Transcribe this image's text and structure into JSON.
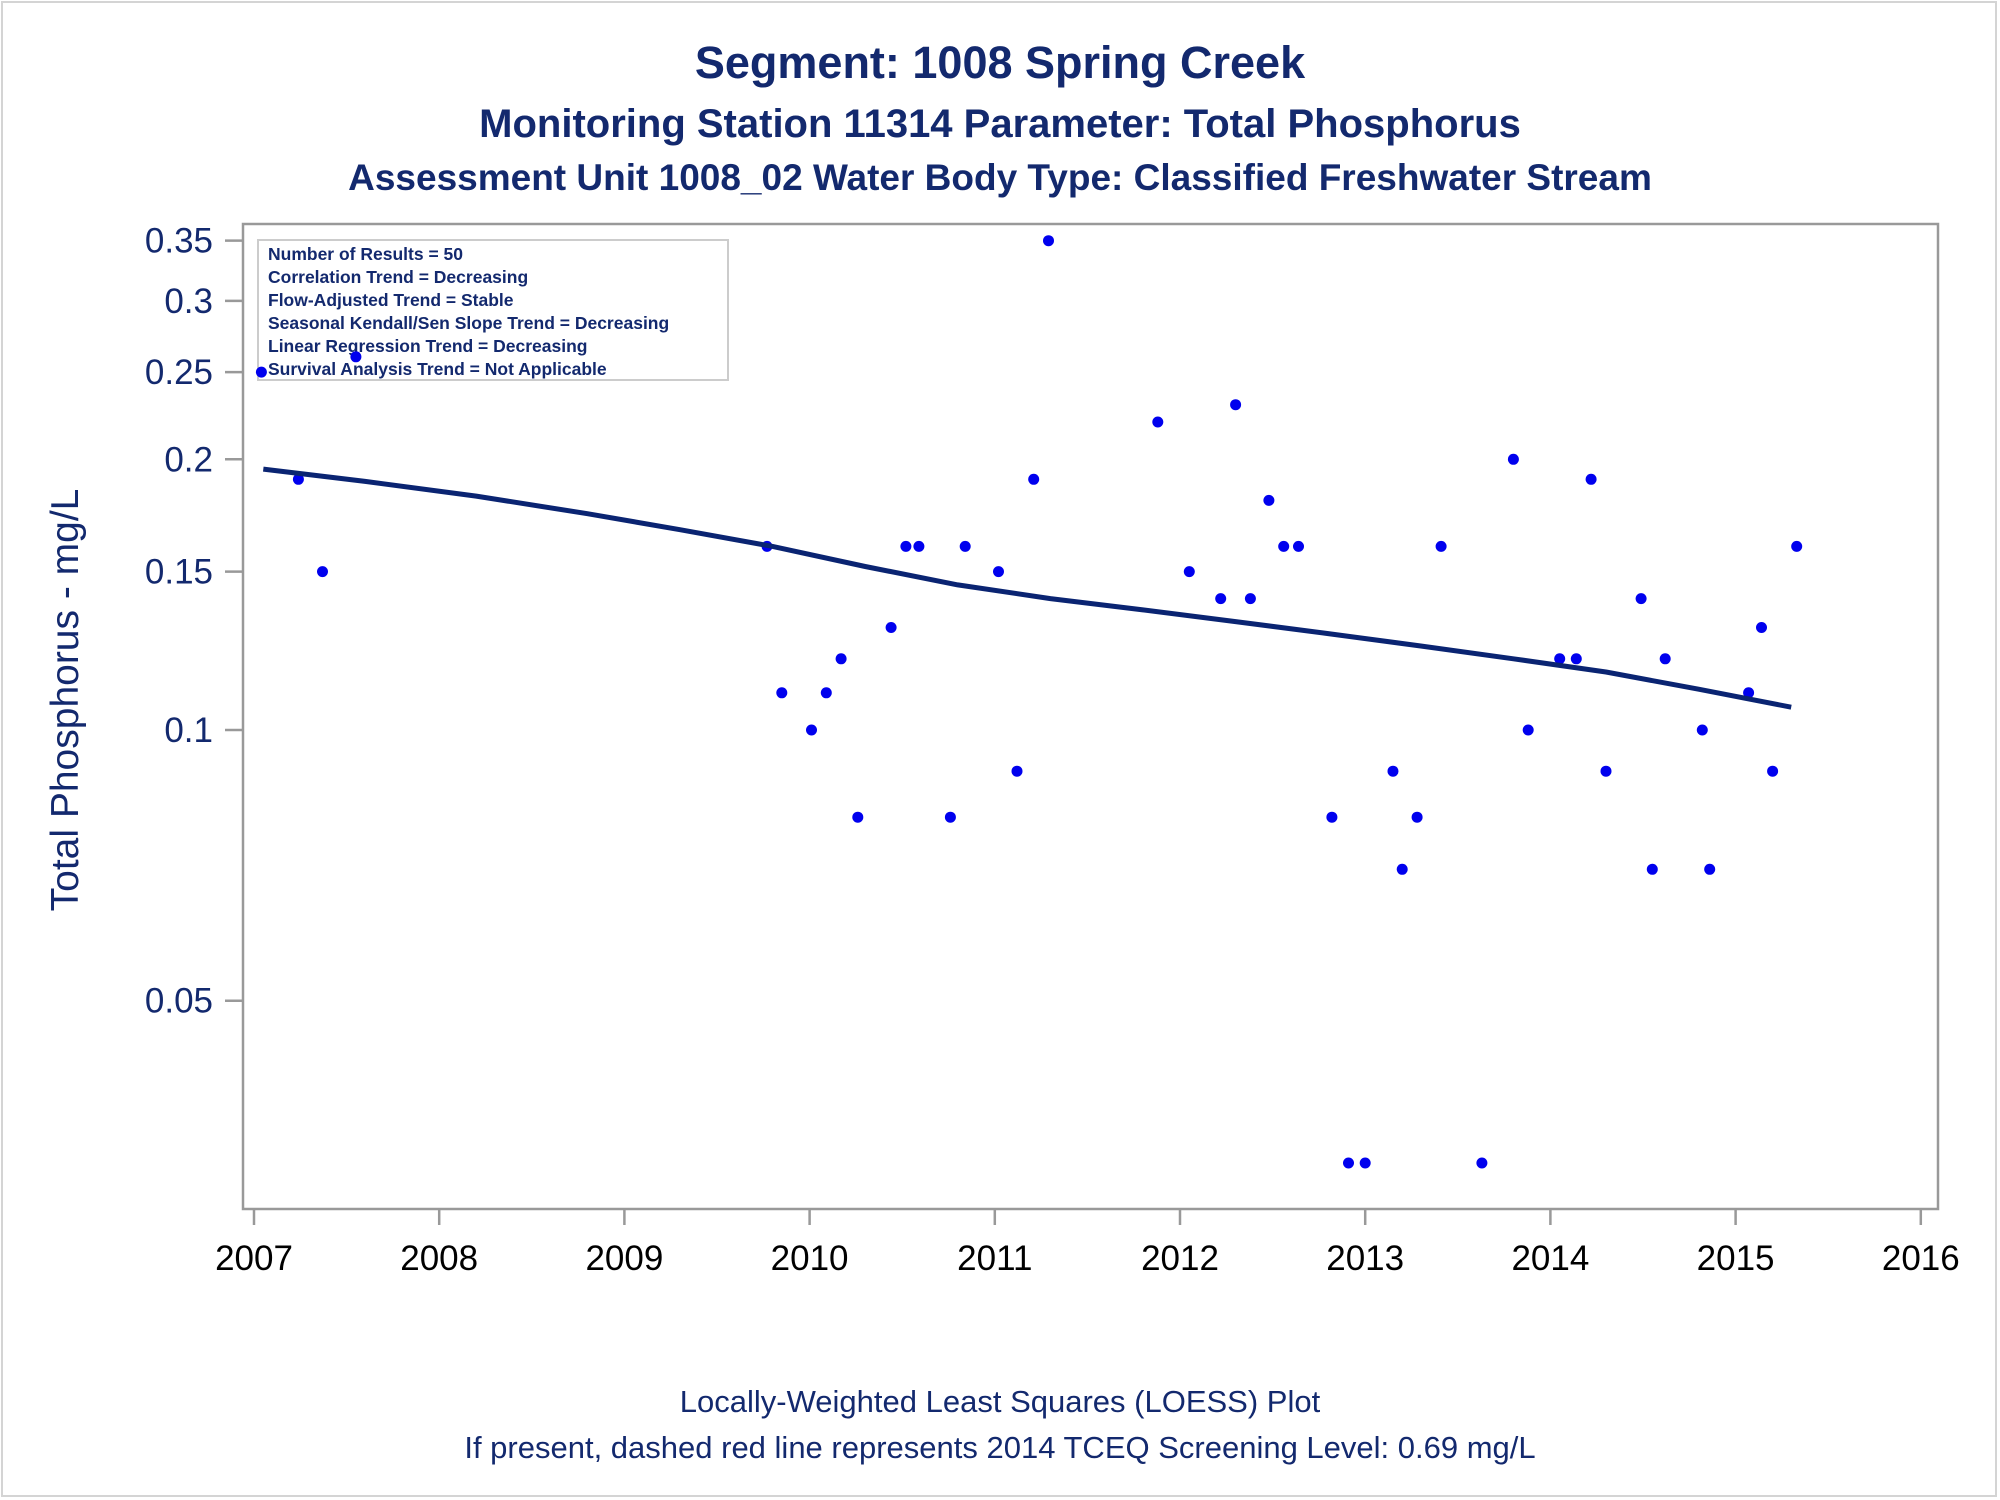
{
  "colors": {
    "text": "#13296e",
    "point": "#0000ee",
    "trend_line": "#0a2472",
    "axis": "#999999"
  },
  "chart_data": {
    "type": "scatter",
    "title": "Segment: 1008  Spring Creek",
    "subtitle": "Monitoring Station 11314 Parameter: Total Phosphorus",
    "subtitle2": "Assessment Unit 1008_02   Water Body Type: Classified Freshwater Stream",
    "ylabel": "Total Phosphorus - mg/L",
    "xlabel": "",
    "yscale": "log",
    "ylim": [
      0.03,
      0.35
    ],
    "xlim": [
      2006.93,
      2016.1
    ],
    "y_ticks": [
      {
        "value": 0.05,
        "label": "0.05"
      },
      {
        "value": 0.1,
        "label": "0.1"
      },
      {
        "value": 0.15,
        "label": "0.15"
      },
      {
        "value": 0.2,
        "label": "0.2"
      },
      {
        "value": 0.25,
        "label": "0.25"
      },
      {
        "value": 0.3,
        "label": "0.3"
      },
      {
        "value": 0.35,
        "label": "0.35"
      }
    ],
    "x_ticks": [
      {
        "value": 2007,
        "label": "2007"
      },
      {
        "value": 2008,
        "label": "2008"
      },
      {
        "value": 2009,
        "label": "2009"
      },
      {
        "value": 2010,
        "label": "2010"
      },
      {
        "value": 2011,
        "label": "2011"
      },
      {
        "value": 2012,
        "label": "2012"
      },
      {
        "value": 2013,
        "label": "2013"
      },
      {
        "value": 2014,
        "label": "2014"
      },
      {
        "value": 2015,
        "label": "2015"
      },
      {
        "value": 2016,
        "label": "2016"
      }
    ],
    "grid": false,
    "legend_box": {
      "placement": "top-left",
      "lines": [
        "Number of Results = 50",
        "Correlation Trend = Decreasing",
        "Flow-Adjusted Trend = Stable",
        "Seasonal Kendall/Sen Slope Trend = Decreasing",
        "Linear Regression Trend = Decreasing",
        "Survival Analysis Trend = Not Applicable"
      ]
    },
    "points": [
      [
        2007.04,
        0.25
      ],
      [
        2007.24,
        0.19
      ],
      [
        2007.37,
        0.15
      ],
      [
        2007.55,
        0.26
      ],
      [
        2009.77,
        0.16
      ],
      [
        2009.85,
        0.11
      ],
      [
        2010.01,
        0.1
      ],
      [
        2010.09,
        0.11
      ],
      [
        2010.17,
        0.12
      ],
      [
        2010.26,
        0.08
      ],
      [
        2010.44,
        0.13
      ],
      [
        2010.52,
        0.16
      ],
      [
        2010.59,
        0.16
      ],
      [
        2010.76,
        0.08
      ],
      [
        2010.84,
        0.16
      ],
      [
        2011.02,
        0.15
      ],
      [
        2011.12,
        0.09
      ],
      [
        2011.21,
        0.19
      ],
      [
        2011.29,
        0.35
      ],
      [
        2011.88,
        0.22
      ],
      [
        2012.05,
        0.15
      ],
      [
        2012.22,
        0.14
      ],
      [
        2012.3,
        0.23
      ],
      [
        2012.38,
        0.14
      ],
      [
        2012.48,
        0.18
      ],
      [
        2012.56,
        0.16
      ],
      [
        2012.64,
        0.16
      ],
      [
        2012.82,
        0.08
      ],
      [
        2012.91,
        0.033
      ],
      [
        2013.0,
        0.033
      ],
      [
        2013.15,
        0.09
      ],
      [
        2013.2,
        0.07
      ],
      [
        2013.28,
        0.08
      ],
      [
        2013.41,
        0.16
      ],
      [
        2013.63,
        0.033
      ],
      [
        2013.8,
        0.2
      ],
      [
        2013.88,
        0.1
      ],
      [
        2014.05,
        0.12
      ],
      [
        2014.14,
        0.12
      ],
      [
        2014.22,
        0.19
      ],
      [
        2014.3,
        0.09
      ],
      [
        2014.49,
        0.14
      ],
      [
        2014.55,
        0.07
      ],
      [
        2014.62,
        0.12
      ],
      [
        2014.82,
        0.1
      ],
      [
        2014.86,
        0.07
      ],
      [
        2015.07,
        0.11
      ],
      [
        2015.14,
        0.13
      ],
      [
        2015.2,
        0.09
      ],
      [
        2015.33,
        0.16
      ]
    ],
    "trend_line": [
      [
        2007.05,
        0.195
      ],
      [
        2007.6,
        0.189
      ],
      [
        2008.2,
        0.182
      ],
      [
        2008.8,
        0.174
      ],
      [
        2009.3,
        0.167
      ],
      [
        2009.8,
        0.16
      ],
      [
        2010.3,
        0.152
      ],
      [
        2010.8,
        0.145
      ],
      [
        2011.3,
        0.14
      ],
      [
        2011.8,
        0.136
      ],
      [
        2012.3,
        0.132
      ],
      [
        2012.8,
        0.128
      ],
      [
        2013.3,
        0.124
      ],
      [
        2013.8,
        0.12
      ],
      [
        2014.3,
        0.116
      ],
      [
        2014.8,
        0.111
      ],
      [
        2015.3,
        0.106
      ]
    ],
    "footnotes": [
      "Locally-Weighted Least Squares (LOESS) Plot",
      "If present, dashed red line represents 2014 TCEQ Screening Level: 0.69 mg/L"
    ]
  }
}
